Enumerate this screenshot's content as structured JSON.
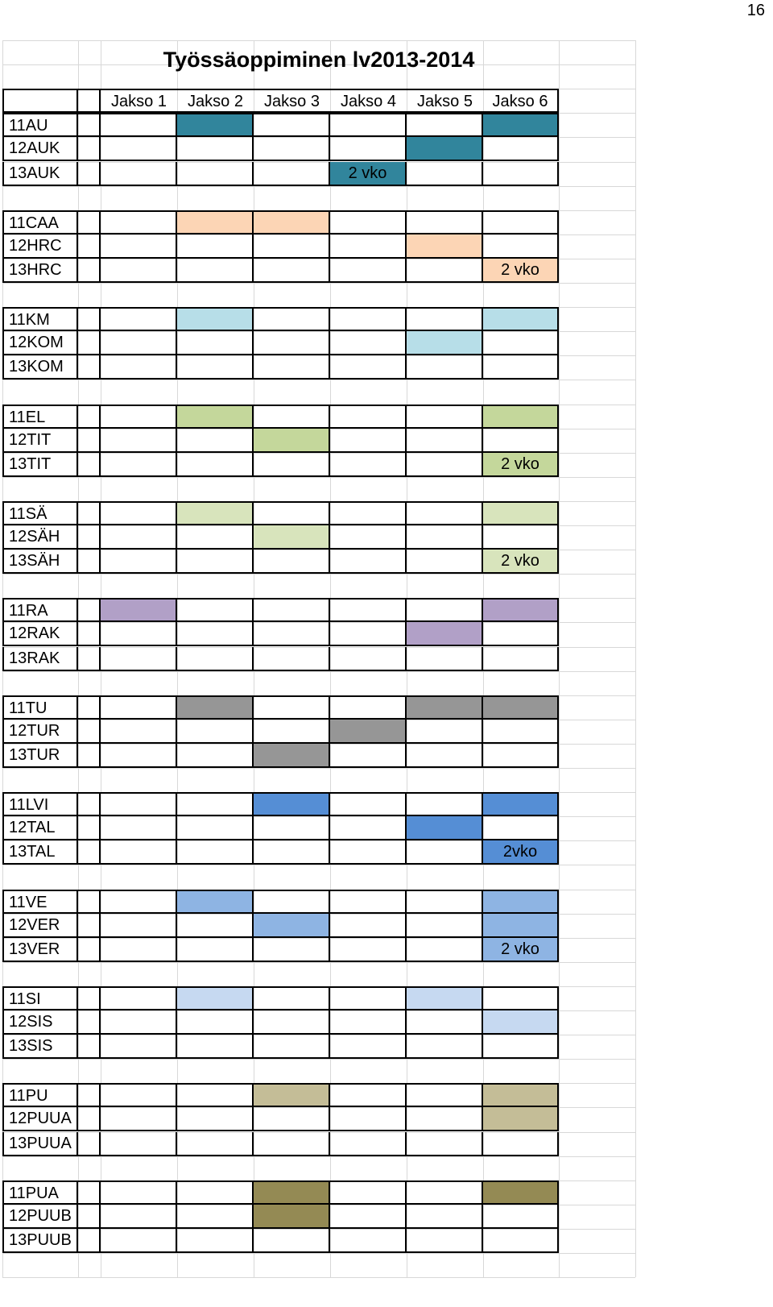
{
  "page_number": "16",
  "title": "Työssäoppiminen lv2013-2014",
  "periods": [
    "Jakso 1",
    "Jakso 2",
    "Jakso 3",
    "Jakso 4",
    "Jakso 5",
    "Jakso 6"
  ],
  "groups": [
    {
      "color": "#31859c",
      "rows": [
        {
          "label": "11AU",
          "cells": [
            0,
            1,
            0,
            0,
            0,
            1
          ],
          "note": null
        },
        {
          "label": "12AUK",
          "cells": [
            0,
            0,
            0,
            0,
            1,
            0
          ],
          "note": null
        },
        {
          "label": "13AUK",
          "cells": [
            0,
            0,
            0,
            1,
            0,
            0
          ],
          "note": "2 vko"
        }
      ]
    },
    {
      "color": "#fcd5b5",
      "rows": [
        {
          "label": "11CAA",
          "cells": [
            0,
            1,
            1,
            0,
            0,
            0
          ],
          "note": null
        },
        {
          "label": "12HRC",
          "cells": [
            0,
            0,
            0,
            0,
            1,
            0
          ],
          "note": null
        },
        {
          "label": "13HRC",
          "cells": [
            0,
            0,
            0,
            0,
            0,
            1
          ],
          "note": "2 vko"
        }
      ]
    },
    {
      "color": "#b7dee8",
      "rows": [
        {
          "label": "11KM",
          "cells": [
            0,
            1,
            0,
            0,
            0,
            1
          ],
          "note": null
        },
        {
          "label": "12KOM",
          "cells": [
            0,
            0,
            0,
            0,
            1,
            0
          ],
          "note": null
        },
        {
          "label": "13KOM",
          "cells": [
            0,
            0,
            0,
            0,
            0,
            0
          ],
          "note": null
        }
      ]
    },
    {
      "color": "#c4d79b",
      "rows": [
        {
          "label": "11EL",
          "cells": [
            0,
            1,
            0,
            0,
            0,
            1
          ],
          "note": null
        },
        {
          "label": "12TIT",
          "cells": [
            0,
            0,
            1,
            0,
            0,
            0
          ],
          "note": null
        },
        {
          "label": "13TIT",
          "cells": [
            0,
            0,
            0,
            0,
            0,
            1
          ],
          "note": "2 vko"
        }
      ]
    },
    {
      "color": "#d8e4bc",
      "rows": [
        {
          "label": "11SÄ",
          "cells": [
            0,
            1,
            0,
            0,
            0,
            1
          ],
          "note": null
        },
        {
          "label": "12SÄH",
          "cells": [
            0,
            0,
            1,
            0,
            0,
            0
          ],
          "note": null
        },
        {
          "label": "13SÄH",
          "cells": [
            0,
            0,
            0,
            0,
            0,
            1
          ],
          "note": "2 vko"
        }
      ]
    },
    {
      "color": "#b1a0c7",
      "rows": [
        {
          "label": "11RA",
          "cells": [
            1,
            0,
            0,
            0,
            0,
            1
          ],
          "note": null
        },
        {
          "label": "12RAK",
          "cells": [
            0,
            0,
            0,
            0,
            1,
            0
          ],
          "note": null
        },
        {
          "label": "13RAK",
          "cells": [
            0,
            0,
            0,
            0,
            0,
            0
          ],
          "note": null
        }
      ]
    },
    {
      "color": "#969696",
      "rows": [
        {
          "label": "11TU",
          "cells": [
            0,
            1,
            0,
            0,
            1,
            1
          ],
          "note": null
        },
        {
          "label": "12TUR",
          "cells": [
            0,
            0,
            0,
            1,
            0,
            0
          ],
          "note": null
        },
        {
          "label": "13TUR",
          "cells": [
            0,
            0,
            1,
            0,
            0,
            0
          ],
          "note": null
        }
      ]
    },
    {
      "color": "#558ed5",
      "rows": [
        {
          "label": "11LVI",
          "cells": [
            0,
            0,
            1,
            0,
            0,
            1
          ],
          "note": null
        },
        {
          "label": "12TAL",
          "cells": [
            0,
            0,
            0,
            0,
            1,
            0
          ],
          "note": null
        },
        {
          "label": "13TAL",
          "cells": [
            0,
            0,
            0,
            0,
            0,
            1
          ],
          "note": "2vko"
        }
      ]
    },
    {
      "color": "#8eb4e3",
      "rows": [
        {
          "label": "11VE",
          "cells": [
            0,
            1,
            0,
            0,
            0,
            1
          ],
          "note": null
        },
        {
          "label": "12VER",
          "cells": [
            0,
            0,
            1,
            0,
            0,
            1
          ],
          "note": null
        },
        {
          "label": "13VER",
          "cells": [
            0,
            0,
            0,
            0,
            0,
            1
          ],
          "note": "2 vko"
        }
      ]
    },
    {
      "color": "#c6d9f1",
      "rows": [
        {
          "label": "11SI",
          "cells": [
            0,
            1,
            0,
            0,
            1,
            0
          ],
          "note": null
        },
        {
          "label": "12SIS",
          "cells": [
            0,
            0,
            0,
            0,
            0,
            1
          ],
          "note": null
        },
        {
          "label": "13SIS",
          "cells": [
            0,
            0,
            0,
            0,
            0,
            0
          ],
          "note": null
        }
      ]
    },
    {
      "color": "#c4bd97",
      "rows": [
        {
          "label": "11PU",
          "cells": [
            0,
            0,
            1,
            0,
            0,
            1
          ],
          "note": null
        },
        {
          "label": "12PUUA",
          "cells": [
            0,
            0,
            0,
            0,
            0,
            1
          ],
          "note": null
        },
        {
          "label": "13PUUA",
          "cells": [
            0,
            0,
            0,
            0,
            0,
            0
          ],
          "note": null
        }
      ]
    },
    {
      "color": "#948a54",
      "rows": [
        {
          "label": "11PUA",
          "cells": [
            0,
            0,
            1,
            0,
            0,
            1
          ],
          "note": null
        },
        {
          "label": "12PUUB",
          "cells": [
            0,
            0,
            1,
            0,
            0,
            0
          ],
          "note": null
        },
        {
          "label": "13PUUB",
          "cells": [
            0,
            0,
            0,
            0,
            0,
            0
          ],
          "note": null
        }
      ]
    }
  ]
}
